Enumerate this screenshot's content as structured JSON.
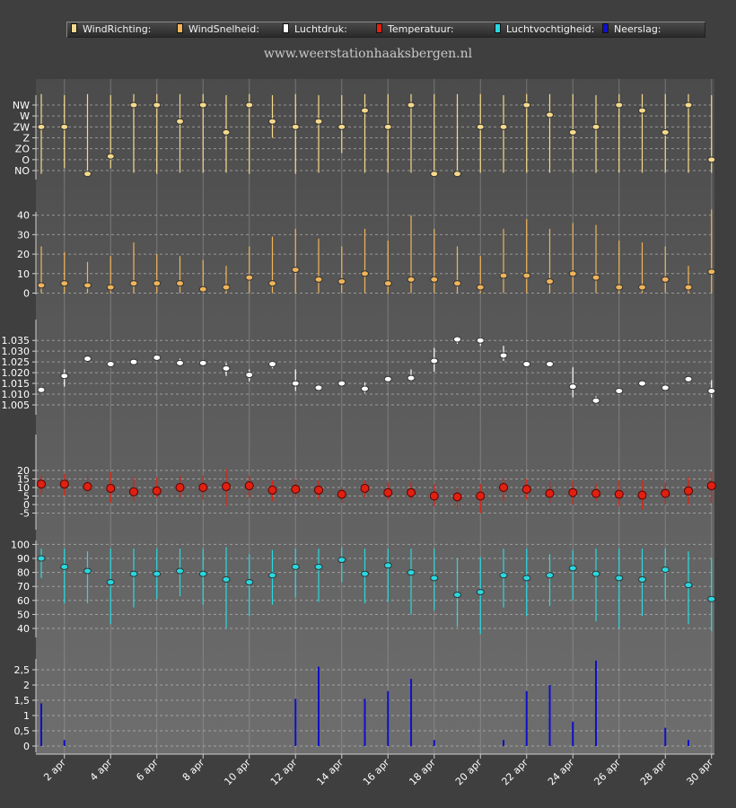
{
  "legend": [
    {
      "label": "WindRichting:",
      "color": "#f6d98c"
    },
    {
      "label": "WindSnelheid:",
      "color": "#f0b45a"
    },
    {
      "label": "Luchtdruk:",
      "color": "#ffffff"
    },
    {
      "label": "Temperatuur:",
      "color": "#e02010"
    },
    {
      "label": "Luchtvochtigheid:",
      "color": "#28d8e0"
    },
    {
      "label": "Neerslag:",
      "color": "#1010c8"
    }
  ],
  "site_title": "www.weerstationhaaksbergen.nl",
  "chart_data": [
    {
      "type": "scatter",
      "name": "WindRichting",
      "x": [
        "1 apr",
        "2 apr",
        "3 apr",
        "4 apr",
        "5 apr",
        "6 apr",
        "7 apr",
        "8 apr",
        "9 apr",
        "10 apr",
        "11 apr",
        "12 apr",
        "13 apr",
        "14 apr",
        "15 apr",
        "16 apr",
        "17 apr",
        "18 apr",
        "19 apr",
        "20 apr",
        "21 apr",
        "22 apr",
        "23 apr",
        "24 apr",
        "25 apr",
        "26 apr",
        "27 apr",
        "28 apr",
        "29 apr",
        "30 apr"
      ],
      "ytick_labels": [
        "NO",
        "O",
        "ZO",
        "Z",
        "ZW",
        "W",
        "NW"
      ],
      "values": [
        4.0,
        4.0,
        -0.3,
        1.3,
        6.0,
        6.0,
        4.5,
        6.0,
        3.5,
        6.0,
        4.5,
        4.0,
        4.5,
        4.0,
        5.5,
        4.0,
        6.0,
        -0.3,
        -0.3,
        4.0,
        4.0,
        6.0,
        5.1,
        3.5,
        4.0,
        6.0,
        5.5,
        3.5,
        6.0,
        1.0
      ],
      "range_low": [
        -0.3,
        0.2,
        -0.3,
        0.2,
        -0.2,
        -0.3,
        -0.2,
        -0.2,
        -0.2,
        -0.3,
        3.0,
        -0.3,
        -0.2,
        1.6,
        -0.2,
        -0.2,
        -0.2,
        -0.3,
        -0.3,
        -0.2,
        -0.2,
        -0.2,
        -0.2,
        -0.2,
        -0.2,
        -0.2,
        -0.2,
        -0.2,
        -0.2,
        -0.2
      ],
      "range_high": [
        7.0,
        6.9,
        7.0,
        6.9,
        7.0,
        7.0,
        7.0,
        7.0,
        6.9,
        7.0,
        6.9,
        7.0,
        6.9,
        6.9,
        7.0,
        7.0,
        7.0,
        7.0,
        7.0,
        7.0,
        6.9,
        7.0,
        7.0,
        7.0,
        6.9,
        7.0,
        7.0,
        7.0,
        7.0,
        6.9
      ],
      "color": "#f6d98c"
    },
    {
      "type": "scatter",
      "name": "WindSnelheid",
      "x": [
        "1 apr",
        "2 apr",
        "3 apr",
        "4 apr",
        "5 apr",
        "6 apr",
        "7 apr",
        "8 apr",
        "9 apr",
        "10 apr",
        "11 apr",
        "12 apr",
        "13 apr",
        "14 apr",
        "15 apr",
        "16 apr",
        "17 apr",
        "18 apr",
        "19 apr",
        "20 apr",
        "21 apr",
        "22 apr",
        "23 apr",
        "24 apr",
        "25 apr",
        "26 apr",
        "27 apr",
        "28 apr",
        "29 apr",
        "30 apr"
      ],
      "yticks": [
        0,
        10,
        20,
        30,
        40
      ],
      "ylim": [
        -1,
        44
      ],
      "values": [
        4,
        5,
        4,
        3,
        5,
        5,
        5,
        2,
        3,
        8,
        5,
        12,
        7,
        6,
        10,
        5,
        7,
        7,
        5,
        3,
        9,
        9,
        6,
        10,
        8,
        3,
        3,
        7,
        3,
        11
      ],
      "range_low": [
        0,
        0,
        0,
        0,
        0,
        0,
        0,
        0,
        0,
        0,
        0,
        0,
        0,
        0,
        0,
        0,
        0,
        0,
        0,
        0,
        0,
        0,
        0,
        0,
        0,
        0,
        0,
        0,
        0,
        0
      ],
      "range_high": [
        24,
        21,
        16,
        19,
        26,
        20,
        19,
        17,
        14,
        24,
        29,
        33,
        28,
        24,
        33,
        27,
        40,
        33,
        24,
        19,
        33,
        38,
        33,
        36,
        35,
        27,
        26,
        24,
        14,
        43
      ],
      "color": "#f0b45a"
    },
    {
      "type": "scatter",
      "name": "Luchtdruk",
      "x": [
        "1 apr",
        "2 apr",
        "3 apr",
        "4 apr",
        "5 apr",
        "6 apr",
        "7 apr",
        "8 apr",
        "9 apr",
        "10 apr",
        "11 apr",
        "12 apr",
        "13 apr",
        "14 apr",
        "15 apr",
        "16 apr",
        "17 apr",
        "18 apr",
        "19 apr",
        "20 apr",
        "21 apr",
        "22 apr",
        "23 apr",
        "24 apr",
        "25 apr",
        "26 apr",
        "27 apr",
        "28 apr",
        "29 apr",
        "30 apr"
      ],
      "ytick_labels": [
        "1.005",
        "1.010",
        "1.015",
        "1.020",
        "1.025",
        "1.030",
        "1.035"
      ],
      "yticks": [
        1.005,
        1.01,
        1.015,
        1.02,
        1.025,
        1.03,
        1.035
      ],
      "ylim": [
        1.0,
        1.04
      ],
      "values": [
        1.012,
        1.0185,
        1.0265,
        1.024,
        1.025,
        1.027,
        1.0245,
        1.0245,
        1.022,
        1.019,
        1.024,
        1.015,
        1.013,
        1.015,
        1.0125,
        1.017,
        1.0175,
        1.0255,
        1.0355,
        1.035,
        1.028,
        1.024,
        1.024,
        1.0135,
        1.007,
        1.0115,
        1.015,
        1.013,
        1.017,
        1.0115
      ],
      "range_low": [
        1.0115,
        1.0135,
        1.0255,
        1.0235,
        1.0245,
        1.0255,
        1.0235,
        1.024,
        1.0185,
        1.016,
        1.022,
        1.0115,
        1.0115,
        1.0145,
        1.0105,
        1.0165,
        1.016,
        1.0205,
        1.0335,
        1.0325,
        1.0255,
        1.023,
        1.0235,
        1.0085,
        1.0055,
        1.011,
        1.0145,
        1.0125,
        1.0165,
        1.0085
      ],
      "range_high": [
        1.0135,
        1.0215,
        1.0275,
        1.0245,
        1.026,
        1.0285,
        1.0265,
        1.0255,
        1.0245,
        1.0215,
        1.0255,
        1.0215,
        1.0145,
        1.0155,
        1.0155,
        1.0175,
        1.0215,
        1.0315,
        1.0365,
        1.0365,
        1.0325,
        1.0245,
        1.0255,
        1.0225,
        1.009,
        1.012,
        1.0155,
        1.0145,
        1.0175,
        1.0165
      ],
      "color": "#ffffff"
    },
    {
      "type": "scatter",
      "name": "Temperatuur",
      "x": [
        "1 apr",
        "2 apr",
        "3 apr",
        "4 apr",
        "5 apr",
        "6 apr",
        "7 apr",
        "8 apr",
        "9 apr",
        "10 apr",
        "11 apr",
        "12 apr",
        "13 apr",
        "14 apr",
        "15 apr",
        "16 apr",
        "17 apr",
        "18 apr",
        "19 apr",
        "20 apr",
        "21 apr",
        "22 apr",
        "23 apr",
        "24 apr",
        "25 apr",
        "26 apr",
        "27 apr",
        "28 apr",
        "29 apr",
        "30 apr"
      ],
      "yticks": [
        -5,
        0,
        5,
        10,
        15,
        20
      ],
      "ylim": [
        -8,
        23
      ],
      "values": [
        12,
        12,
        10.5,
        9.5,
        7.5,
        8,
        10,
        10,
        10.5,
        11,
        8.5,
        9,
        8.5,
        6,
        9.5,
        7,
        7,
        5,
        4.5,
        5,
        10,
        9,
        6.5,
        7,
        6.5,
        6,
        5.5,
        6.5,
        8,
        11
      ],
      "range_low": [
        6,
        5,
        6,
        1,
        2,
        4,
        4,
        3,
        -1,
        4,
        2,
        4,
        3,
        1,
        4,
        3,
        3,
        -1,
        -2,
        -5,
        2,
        3,
        1,
        0,
        2,
        -1,
        -3,
        0,
        0,
        1
      ],
      "range_high": [
        17,
        18,
        17,
        19,
        16,
        16,
        17,
        17,
        21,
        17,
        14,
        15,
        14,
        10,
        14,
        13,
        13,
        12,
        10,
        12,
        15,
        15,
        13,
        14,
        12,
        14,
        14,
        13,
        16,
        19
      ],
      "color": "#e02010"
    },
    {
      "type": "scatter",
      "name": "Luchtvochtigheid",
      "x": [
        "1 apr",
        "2 apr",
        "3 apr",
        "4 apr",
        "5 apr",
        "6 apr",
        "7 apr",
        "8 apr",
        "9 apr",
        "10 apr",
        "11 apr",
        "12 apr",
        "13 apr",
        "14 apr",
        "15 apr",
        "16 apr",
        "17 apr",
        "18 apr",
        "19 apr",
        "20 apr",
        "21 apr",
        "22 apr",
        "23 apr",
        "24 apr",
        "25 apr",
        "26 apr",
        "27 apr",
        "28 apr",
        "29 apr",
        "30 apr"
      ],
      "yticks": [
        40,
        50,
        60,
        70,
        80,
        90,
        100
      ],
      "ylim": [
        33,
        103
      ],
      "values": [
        90,
        84,
        81,
        73,
        79,
        79,
        81,
        79,
        75,
        73,
        78,
        84,
        84,
        89,
        79,
        85,
        80,
        76,
        64,
        66,
        78,
        76,
        78,
        83,
        79,
        76,
        75,
        82,
        71,
        61
      ],
      "range_low": [
        76,
        58,
        58,
        43,
        55,
        61,
        63,
        57,
        40,
        49,
        57,
        62,
        59,
        73,
        58,
        59,
        50,
        53,
        41,
        36,
        55,
        49,
        56,
        60,
        45,
        40,
        49,
        60,
        43,
        38
      ],
      "range_high": [
        97,
        97,
        95,
        97,
        97,
        97,
        97,
        97,
        98,
        93,
        96,
        97,
        97,
        98,
        97,
        97,
        97,
        97,
        90,
        91,
        97,
        97,
        93,
        96,
        97,
        97,
        97,
        97,
        95,
        90
      ],
      "color": "#28d8e0"
    },
    {
      "type": "bar",
      "name": "Neerslag",
      "x": [
        "1 apr",
        "2 apr",
        "3 apr",
        "4 apr",
        "5 apr",
        "6 apr",
        "7 apr",
        "8 apr",
        "9 apr",
        "10 apr",
        "11 apr",
        "12 apr",
        "13 apr",
        "14 apr",
        "15 apr",
        "16 apr",
        "17 apr",
        "18 apr",
        "19 apr",
        "20 apr",
        "21 apr",
        "22 apr",
        "23 apr",
        "24 apr",
        "25 apr",
        "26 apr",
        "27 apr",
        "28 apr",
        "29 apr",
        "30 apr"
      ],
      "ytick_labels": [
        "0",
        "0,5",
        "1",
        "1,5",
        "2",
        "2,5"
      ],
      "yticks": [
        0,
        0.5,
        1,
        1.5,
        2,
        2.5
      ],
      "ylim": [
        -0.25,
        3.0
      ],
      "values": [
        1.4,
        0.2,
        0,
        0,
        0,
        0,
        0,
        0,
        0,
        0,
        0,
        1.55,
        2.6,
        0,
        1.55,
        1.8,
        2.2,
        0.2,
        0,
        0,
        0.2,
        1.8,
        2.0,
        0.8,
        2.8,
        0,
        0,
        0.6,
        0.2,
        0
      ],
      "color": "#1010c8"
    }
  ],
  "xaxis": {
    "tick_labels": [
      "2 apr",
      "4 apr",
      "6 apr",
      "8 apr",
      "10 apr",
      "12 apr",
      "14 apr",
      "16 apr",
      "18 apr",
      "20 apr",
      "22 apr",
      "24 apr",
      "26 apr",
      "28 apr",
      "30 apr"
    ]
  }
}
